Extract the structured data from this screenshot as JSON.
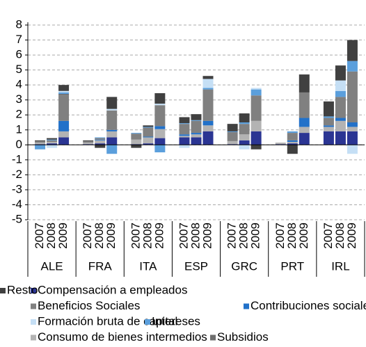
{
  "chart_data": {
    "type": "stacked-bar",
    "groups": [
      "ALE",
      "FRA",
      "ITA",
      "ESP",
      "GRC",
      "PRT",
      "IRL"
    ],
    "categories": [
      "2007",
      "2008",
      "2009",
      "2007",
      "2008",
      "2009",
      "2007",
      "2008",
      "2009",
      "2007",
      "2008",
      "2009",
      "2007",
      "2008",
      "2009",
      "2007",
      "2008",
      "2009",
      "2007",
      "2008",
      "2009"
    ],
    "ylim": [
      -5,
      8
    ],
    "yticks": [
      -5,
      -4,
      -3,
      -2,
      -1,
      0,
      1,
      2,
      3,
      4,
      5,
      6,
      7,
      8
    ],
    "grid": true,
    "series": [
      {
        "name": "Compensación a empleados",
        "color": "#2b3593",
        "values": [
          0.05,
          0.1,
          0.5,
          0.05,
          0.1,
          0.5,
          0.05,
          0.1,
          0.45,
          0.5,
          0.5,
          0.9,
          0.05,
          0.3,
          0.9,
          0.05,
          0.1,
          0.8,
          0.9,
          0.9,
          0.9
        ]
      },
      {
        "name": "Resto",
        "color": "#404040",
        "values": [
          0.05,
          0.1,
          0.4,
          0.05,
          -0.2,
          0.8,
          -0.2,
          0.1,
          0.7,
          0.4,
          0.4,
          0.2,
          0.5,
          0.6,
          -0.3,
          0,
          -0.6,
          1.2,
          1,
          1,
          1.4
        ]
      },
      {
        "name": "Beneficios Sociales",
        "color": "#808080",
        "values": [
          0.1,
          0.1,
          1.7,
          0.1,
          0.1,
          1.3,
          0.4,
          0.6,
          1.4,
          0.7,
          0.8,
          2.1,
          0.6,
          0.7,
          1.7,
          0,
          0.5,
          1.7,
          0.5,
          1.4,
          3.4
        ]
      },
      {
        "name": "Contribuciones sociales",
        "color": "#2271c9",
        "values": [
          0,
          0,
          0.7,
          0,
          0.05,
          0.1,
          0,
          0.05,
          0.2,
          0.1,
          0.1,
          0.3,
          0,
          0,
          0,
          0,
          0.1,
          0.6,
          0.1,
          0.2,
          0.3
        ]
      },
      {
        "name": "Formación bruta de capital",
        "color": "#c5dff5",
        "values": [
          0,
          -0.2,
          0.1,
          0,
          0,
          0.1,
          0,
          0,
          0.1,
          -0.2,
          0,
          0.6,
          0,
          -0.3,
          0.1,
          0,
          0,
          0,
          0,
          0.7,
          -0.6
        ]
      },
      {
        "name": "Intereses",
        "color": "#5b9fdc",
        "values": [
          -0.3,
          0.05,
          0.1,
          0,
          0.05,
          -0.6,
          0.05,
          0.05,
          -0.5,
          0.05,
          0.05,
          0.1,
          0.05,
          0.1,
          0.4,
          0,
          0.1,
          0,
          0.1,
          0.4,
          0.7
        ]
      },
      {
        "name": "Consumo de bienes intermedios",
        "color": "#b3b3b3",
        "values": [
          0.1,
          0.1,
          0.4,
          0.1,
          0.2,
          0.4,
          0.3,
          0.4,
          0.6,
          0.1,
          0.2,
          0.4,
          0.2,
          0.4,
          0.7,
          0.1,
          0.1,
          0.4,
          0.3,
          0.7,
          0.3
        ]
      },
      {
        "name": "Subsidios",
        "color": "#6e6e6e",
        "values": [
          0,
          0,
          0.1,
          0,
          0,
          0,
          0,
          0,
          0,
          0,
          0,
          0,
          0,
          0,
          0,
          0,
          0,
          0,
          0,
          0,
          0
        ]
      }
    ]
  }
}
